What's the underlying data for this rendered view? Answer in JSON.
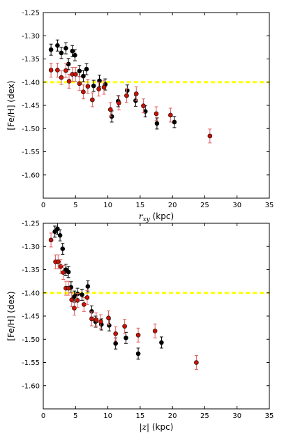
{
  "chart_data": [
    {
      "type": "scatter",
      "xlabel_var": "r",
      "xlabel_sub": "xy",
      "xlabel_unit": " (kpc)",
      "ylabel": "[Fe/H] (dex)",
      "xlim": [
        0,
        35
      ],
      "ylim": [
        -1.65,
        -1.25
      ],
      "xticks": [
        "0",
        "5",
        "10",
        "15",
        "20",
        "25",
        "30",
        "35"
      ],
      "xtick_values": [
        0,
        5,
        10,
        15,
        20,
        25,
        30,
        35
      ],
      "yticks": [
        "-1.25",
        "-1.30",
        "-1.35",
        "-1.40",
        "-1.45",
        "-1.50",
        "-1.55",
        "-1.60"
      ],
      "ytick_values": [
        -1.25,
        -1.3,
        -1.35,
        -1.4,
        -1.45,
        -1.5,
        -1.55,
        -1.6
      ],
      "reference_line": {
        "y": -1.4,
        "color": "#ffff00",
        "style": "dashed"
      },
      "grid": false,
      "series": [
        {
          "color": "#000000",
          "points": [
            {
              "x": 1.2,
              "y": -1.33,
              "err": 0.012
            },
            {
              "x": 2.2,
              "y": -1.321,
              "err": 0.012
            },
            {
              "x": 2.8,
              "y": -1.337,
              "err": 0.012
            },
            {
              "x": 3.5,
              "y": -1.327,
              "err": 0.012
            },
            {
              "x": 3.9,
              "y": -1.361,
              "err": 0.012
            },
            {
              "x": 4.5,
              "y": -1.333,
              "err": 0.012
            },
            {
              "x": 4.9,
              "y": -1.342,
              "err": 0.012
            },
            {
              "x": 5.6,
              "y": -1.376,
              "err": 0.012
            },
            {
              "x": 6.2,
              "y": -1.387,
              "err": 0.012
            },
            {
              "x": 6.7,
              "y": -1.372,
              "err": 0.012
            },
            {
              "x": 7.8,
              "y": -1.408,
              "err": 0.012
            },
            {
              "x": 8.7,
              "y": -1.397,
              "err": 0.012
            },
            {
              "x": 9.6,
              "y": -1.405,
              "err": 0.012
            },
            {
              "x": 10.6,
              "y": -1.474,
              "err": 0.012
            },
            {
              "x": 11.6,
              "y": -1.441,
              "err": 0.012
            },
            {
              "x": 13.0,
              "y": -1.418,
              "err": 0.012
            },
            {
              "x": 14.3,
              "y": -1.44,
              "err": 0.012
            },
            {
              "x": 15.8,
              "y": -1.463,
              "err": 0.012
            },
            {
              "x": 17.6,
              "y": -1.489,
              "err": 0.012
            },
            {
              "x": 20.3,
              "y": -1.486,
              "err": 0.012
            }
          ]
        },
        {
          "color": "#cc1100",
          "points": [
            {
              "x": 1.2,
              "y": -1.374,
              "err": 0.015
            },
            {
              "x": 2.2,
              "y": -1.374,
              "err": 0.015
            },
            {
              "x": 2.8,
              "y": -1.39,
              "err": 0.015
            },
            {
              "x": 3.5,
              "y": -1.375,
              "err": 0.015
            },
            {
              "x": 4.0,
              "y": -1.398,
              "err": 0.015
            },
            {
              "x": 4.5,
              "y": -1.383,
              "err": 0.015
            },
            {
              "x": 5.0,
              "y": -1.383,
              "err": 0.015
            },
            {
              "x": 5.6,
              "y": -1.403,
              "err": 0.015
            },
            {
              "x": 6.2,
              "y": -1.421,
              "err": 0.015
            },
            {
              "x": 6.9,
              "y": -1.409,
              "err": 0.015
            },
            {
              "x": 7.6,
              "y": -1.438,
              "err": 0.015
            },
            {
              "x": 8.6,
              "y": -1.415,
              "err": 0.015
            },
            {
              "x": 9.4,
              "y": -1.411,
              "err": 0.015
            },
            {
              "x": 10.4,
              "y": -1.459,
              "err": 0.015
            },
            {
              "x": 11.7,
              "y": -1.445,
              "err": 0.015
            },
            {
              "x": 12.9,
              "y": -1.429,
              "err": 0.015
            },
            {
              "x": 14.4,
              "y": -1.425,
              "err": 0.015
            },
            {
              "x": 15.5,
              "y": -1.451,
              "err": 0.015
            },
            {
              "x": 17.5,
              "y": -1.468,
              "err": 0.015
            },
            {
              "x": 19.7,
              "y": -1.471,
              "err": 0.015
            },
            {
              "x": 25.8,
              "y": -1.516,
              "err": 0.015
            }
          ]
        }
      ]
    },
    {
      "type": "scatter",
      "xlabel_var": "|z|",
      "xlabel_sub": "",
      "xlabel_unit": " (kpc)",
      "ylabel": "[Fe/H] (dex)",
      "xlim": [
        0,
        35
      ],
      "ylim": [
        -1.65,
        -1.25
      ],
      "xticks": [
        "0",
        "5",
        "10",
        "15",
        "20",
        "25",
        "30",
        "35"
      ],
      "xtick_values": [
        0,
        5,
        10,
        15,
        20,
        25,
        30,
        35
      ],
      "yticks": [
        "-1.25",
        "-1.30",
        "-1.35",
        "-1.40",
        "-1.45",
        "-1.50",
        "-1.55",
        "-1.60"
      ],
      "ytick_values": [
        -1.25,
        -1.3,
        -1.35,
        -1.4,
        -1.45,
        -1.5,
        -1.55,
        -1.6
      ],
      "reference_line": {
        "y": -1.4,
        "color": "#ffff00",
        "style": "dashed"
      },
      "grid": false,
      "series": [
        {
          "color": "#000000",
          "points": [
            {
              "x": 1.8,
              "y": -1.268,
              "err": 0.012
            },
            {
              "x": 2.2,
              "y": -1.262,
              "err": 0.012
            },
            {
              "x": 2.6,
              "y": -1.276,
              "err": 0.012
            },
            {
              "x": 3.0,
              "y": -1.305,
              "err": 0.012
            },
            {
              "x": 3.5,
              "y": -1.35,
              "err": 0.012
            },
            {
              "x": 3.9,
              "y": -1.355,
              "err": 0.012
            },
            {
              "x": 4.3,
              "y": -1.388,
              "err": 0.012
            },
            {
              "x": 4.8,
              "y": -1.408,
              "err": 0.012
            },
            {
              "x": 5.3,
              "y": -1.402,
              "err": 0.012
            },
            {
              "x": 6.0,
              "y": -1.404,
              "err": 0.012
            },
            {
              "x": 6.9,
              "y": -1.386,
              "err": 0.012
            },
            {
              "x": 7.5,
              "y": -1.44,
              "err": 0.012
            },
            {
              "x": 8.1,
              "y": -1.462,
              "err": 0.012
            },
            {
              "x": 9.0,
              "y": -1.468,
              "err": 0.012
            },
            {
              "x": 10.2,
              "y": -1.47,
              "err": 0.012
            },
            {
              "x": 11.2,
              "y": -1.509,
              "err": 0.012
            },
            {
              "x": 12.8,
              "y": -1.497,
              "err": 0.012
            },
            {
              "x": 14.7,
              "y": -1.531,
              "err": 0.012
            },
            {
              "x": 18.3,
              "y": -1.507,
              "err": 0.012
            }
          ]
        },
        {
          "color": "#cc1100",
          "points": [
            {
              "x": 1.2,
              "y": -1.286,
              "err": 0.015
            },
            {
              "x": 1.9,
              "y": -1.333,
              "err": 0.015
            },
            {
              "x": 2.3,
              "y": -1.333,
              "err": 0.015
            },
            {
              "x": 2.7,
              "y": -1.343,
              "err": 0.015
            },
            {
              "x": 3.1,
              "y": -1.356,
              "err": 0.015
            },
            {
              "x": 3.5,
              "y": -1.39,
              "err": 0.015
            },
            {
              "x": 3.9,
              "y": -1.39,
              "err": 0.015
            },
            {
              "x": 4.4,
              "y": -1.415,
              "err": 0.015
            },
            {
              "x": 4.8,
              "y": -1.433,
              "err": 0.015
            },
            {
              "x": 5.3,
              "y": -1.416,
              "err": 0.015
            },
            {
              "x": 6.3,
              "y": -1.425,
              "err": 0.015
            },
            {
              "x": 6.8,
              "y": -1.41,
              "err": 0.015
            },
            {
              "x": 7.5,
              "y": -1.456,
              "err": 0.015
            },
            {
              "x": 8.2,
              "y": -1.458,
              "err": 0.015
            },
            {
              "x": 8.9,
              "y": -1.462,
              "err": 0.015
            },
            {
              "x": 10.1,
              "y": -1.454,
              "err": 0.015
            },
            {
              "x": 11.2,
              "y": -1.488,
              "err": 0.015
            },
            {
              "x": 12.6,
              "y": -1.472,
              "err": 0.015
            },
            {
              "x": 14.7,
              "y": -1.491,
              "err": 0.015
            },
            {
              "x": 17.3,
              "y": -1.482,
              "err": 0.015
            },
            {
              "x": 23.7,
              "y": -1.55,
              "err": 0.015
            }
          ]
        }
      ]
    }
  ]
}
